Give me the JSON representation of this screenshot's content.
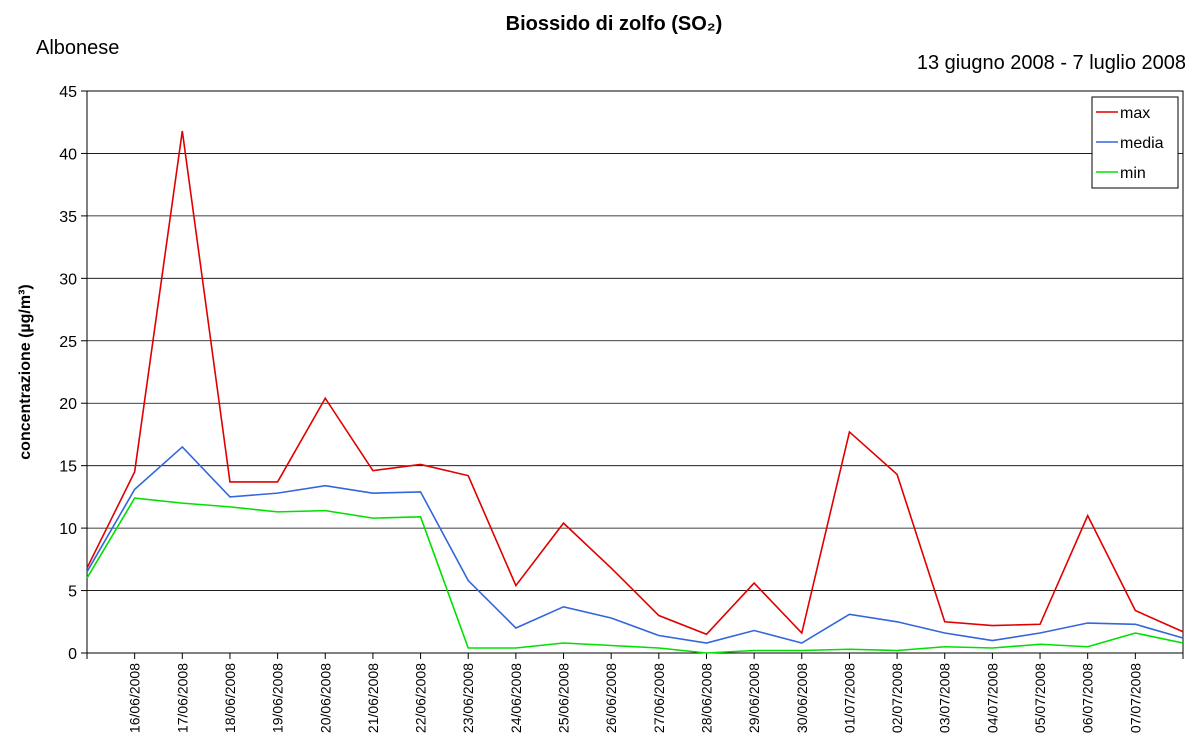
{
  "chart_data": {
    "type": "line",
    "title": "Biossido di zolfo (SO₂)",
    "station": "Albonese",
    "period": "13 giugno 2008 - 7 luglio 2008",
    "y_label": "concentrazione (µg/m³)",
    "categories": [
      null,
      "16/06/2008",
      "17/06/2008",
      "18/06/2008",
      "19/06/2008",
      "20/06/2008",
      "21/06/2008",
      "22/06/2008",
      "23/06/2008",
      "24/06/2008",
      "25/06/2008",
      "26/06/2008",
      "27/06/2008",
      "28/06/2008",
      "29/06/2008",
      "30/06/2008",
      "01/07/2008",
      "02/07/2008",
      "03/07/2008",
      "04/07/2008",
      "05/07/2008",
      "06/07/2008",
      "07/07/2008",
      null
    ],
    "series": [
      {
        "name": "max",
        "color": "#e00000",
        "values": [
          6.8,
          14.5,
          41.8,
          13.7,
          13.7,
          20.4,
          14.6,
          15.1,
          14.2,
          5.4,
          10.4,
          6.8,
          3.0,
          1.5,
          5.6,
          1.6,
          17.7,
          14.3,
          2.5,
          2.2,
          2.3,
          11.0,
          3.4,
          1.7
        ]
      },
      {
        "name": "media",
        "color": "#3366dd",
        "values": [
          6.5,
          13.1,
          16.5,
          12.5,
          12.8,
          13.4,
          12.8,
          12.9,
          5.8,
          2.0,
          3.7,
          2.8,
          1.4,
          0.8,
          1.8,
          0.8,
          3.1,
          2.5,
          1.6,
          1.0,
          1.6,
          2.4,
          2.3,
          1.2
        ]
      },
      {
        "name": "min",
        "color": "#00e000",
        "values": [
          6.0,
          12.4,
          12.0,
          11.7,
          11.3,
          11.4,
          10.8,
          10.9,
          0.4,
          0.4,
          0.8,
          0.6,
          0.4,
          0.0,
          0.2,
          0.2,
          0.3,
          0.2,
          0.5,
          0.4,
          0.7,
          0.5,
          1.6,
          0.8
        ]
      }
    ],
    "ylim": [
      0,
      45
    ],
    "yticks": [
      0,
      5,
      10,
      15,
      20,
      25,
      30,
      35,
      40,
      45
    ],
    "grid": true,
    "legend": "top-right"
  }
}
